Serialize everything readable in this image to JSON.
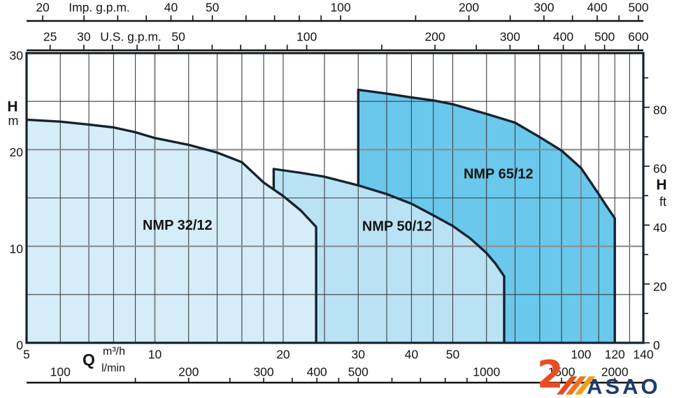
{
  "logo": {
    "text": "ASAO",
    "mark": "2-swoosh",
    "orange": "#e94d24",
    "orange_light": "#f59e1b",
    "blue": "#1d3c70"
  },
  "chart_data": {
    "type": "area",
    "title": "",
    "x_scale": "log",
    "x_unit": "m³/h",
    "x_range": [
      5,
      140
    ],
    "y_unit": "m",
    "y_range": [
      0,
      30
    ],
    "grid": {
      "vertical_m3h": [
        6,
        7,
        8,
        9,
        10,
        12,
        14,
        16,
        18,
        20,
        25,
        30,
        35,
        40,
        45,
        50,
        60,
        70,
        80,
        90,
        100,
        110,
        120,
        130
      ],
      "vertical_major_m3h": [
        10,
        100
      ],
      "horizontal_m": [
        5,
        10,
        15,
        20,
        25
      ],
      "horizontal_major_m": [
        10,
        20
      ]
    },
    "axes": {
      "imp_gpm": {
        "title": "Imp. g.p.m.",
        "factor_to_m3h": 0.27276,
        "ticks": [
          20,
          25,
          30,
          35,
          40,
          45,
          50,
          60,
          70,
          80,
          90,
          100,
          150,
          200,
          250,
          300,
          350,
          400,
          450,
          500
        ],
        "labeled": [
          20,
          40,
          50,
          100,
          200,
          300,
          400,
          500
        ]
      },
      "us_gpm": {
        "title": "U.S. g.p.m.",
        "factor_to_m3h": 0.22712,
        "ticks": [
          25,
          30,
          35,
          40,
          45,
          50,
          60,
          70,
          80,
          90,
          100,
          150,
          200,
          250,
          300,
          350,
          400,
          450,
          500,
          600
        ],
        "labeled": [
          25,
          30,
          50,
          100,
          200,
          300,
          400,
          500,
          600
        ]
      },
      "m3h": {
        "title_q": "Q",
        "title_unit": "m³/h",
        "labeled": [
          5,
          10,
          20,
          30,
          40,
          50,
          100,
          120,
          140
        ]
      },
      "lmin": {
        "title_unit": "l/min",
        "factor_to_m3h": 0.06,
        "ticks": [
          100,
          150,
          200,
          250,
          300,
          350,
          400,
          450,
          500,
          600,
          700,
          800,
          900,
          1000,
          1500,
          2000
        ],
        "labeled": [
          100,
          200,
          300,
          400,
          500,
          1000,
          1500,
          2000
        ]
      },
      "h_m": {
        "title": "H",
        "unit": "m",
        "labeled": [
          0,
          10,
          20,
          30
        ]
      },
      "h_ft": {
        "title": "H",
        "unit": "ft",
        "factor_to_m": 0.3048,
        "ticks": [
          0,
          10,
          20,
          30,
          40,
          50,
          60,
          70,
          80,
          90
        ],
        "labeled": [
          0,
          20,
          40,
          60,
          80
        ]
      }
    },
    "series": [
      {
        "name": "NMP 65/12",
        "fill": "#69c8ec",
        "left_edge_bottom_H": 16.3,
        "label_Q": 64,
        "label_H": 17.4,
        "points": [
          [
            30,
            26.2
          ],
          [
            35,
            25.8
          ],
          [
            40,
            25.4
          ],
          [
            45,
            25.1
          ],
          [
            50,
            24.7
          ],
          [
            60,
            23.7
          ],
          [
            70,
            22.8
          ],
          [
            80,
            21.3
          ],
          [
            90,
            19.9
          ],
          [
            100,
            18.1
          ],
          [
            110,
            15.4
          ],
          [
            115,
            14.1
          ],
          [
            120,
            12.9
          ]
        ]
      },
      {
        "name": "NMP 50/12",
        "fill": "#b9e2f5",
        "left_edge_bottom_H": 15.9,
        "label_Q": 37,
        "label_H": 12.0,
        "points": [
          [
            19,
            18.0
          ],
          [
            22,
            17.6
          ],
          [
            25,
            17.2
          ],
          [
            30,
            16.3
          ],
          [
            35,
            15.4
          ],
          [
            40,
            14.4
          ],
          [
            45,
            13.2
          ],
          [
            50,
            12.1
          ],
          [
            55,
            10.8
          ],
          [
            60,
            9.3
          ],
          [
            63,
            8.2
          ],
          [
            66,
            6.9
          ]
        ]
      },
      {
        "name": "NMP 32/12",
        "fill": "#d5edf9",
        "left_edge_bottom_H": null,
        "label_Q": 11.3,
        "label_H": 12.1,
        "points": [
          [
            5,
            23.1
          ],
          [
            6,
            22.9
          ],
          [
            7,
            22.6
          ],
          [
            8,
            22.3
          ],
          [
            9,
            21.8
          ],
          [
            10,
            21.2
          ],
          [
            12,
            20.5
          ],
          [
            14,
            19.7
          ],
          [
            16,
            18.7
          ],
          [
            18,
            16.6
          ],
          [
            20,
            15.2
          ],
          [
            22,
            13.7
          ],
          [
            23.9,
            12.0
          ]
        ]
      }
    ],
    "style": {
      "curve_color": "#16232e",
      "border_color": "#16232e",
      "grid_minor_color": "#3d3d3d",
      "grid_major_color": "#8c8c8c",
      "label_color": "#101c28",
      "axis_color": "#111111"
    }
  }
}
